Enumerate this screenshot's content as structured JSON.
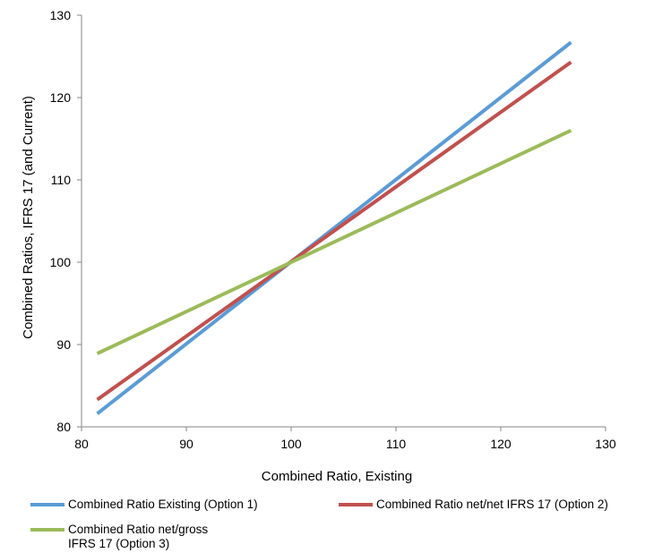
{
  "chart_data": {
    "type": "line",
    "xlabel": "Combined Ratio, Existing",
    "ylabel": "Combined Ratios, IFRS 17 (and Current)",
    "xlim": [
      80,
      130
    ],
    "ylim": [
      80,
      130
    ],
    "xticks": [
      80,
      90,
      100,
      110,
      120,
      130
    ],
    "yticks": [
      80,
      90,
      100,
      110,
      120,
      130
    ],
    "grid": false,
    "legend_position": "bottom",
    "series": [
      {
        "name": "Combined Ratio Existing (Option 1)",
        "color": "#5B9BD5",
        "x": [
          81.5,
          126.7
        ],
        "y": [
          81.6,
          126.7
        ]
      },
      {
        "name": "Combined Ratio net/net IFRS 17 (Option 2)",
        "color": "#C0504D",
        "x": [
          81.5,
          126.7
        ],
        "y": [
          83.3,
          124.3
        ]
      },
      {
        "name": "Combined Ratio net/gross IFRS 17 (Option 3)",
        "color": "#9BBB59",
        "x": [
          81.5,
          126.7
        ],
        "y": [
          88.9,
          116.0
        ]
      }
    ]
  }
}
